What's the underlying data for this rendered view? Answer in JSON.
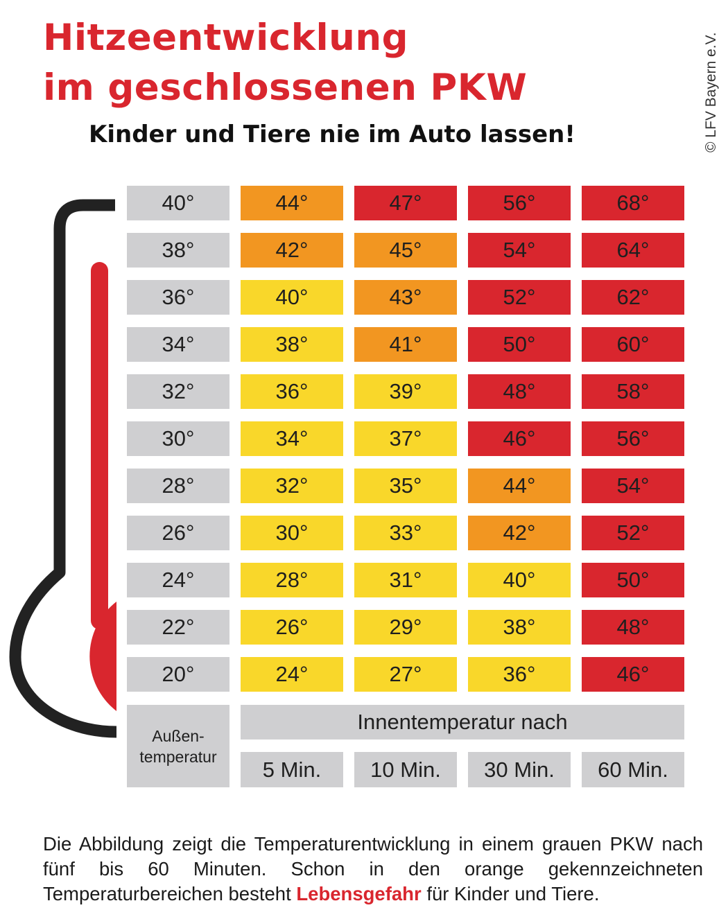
{
  "title": [
    "Hitzeentwicklung",
    "im geschlossenen PKW"
  ],
  "subtitle": "Kinder und Tiere nie im Auto lassen!",
  "copyright": "© LFV Bayern e.V.",
  "colors": {
    "title_red": "#d9262e",
    "gray": "#cfcfd1",
    "yellow": "#f9d72a",
    "orange": "#f29621",
    "red": "#d9262e",
    "thermometer_frame": "#222222"
  },
  "chart_data": {
    "type": "table",
    "row_header_label": [
      "Außen-",
      "temperatur"
    ],
    "column_group_label": "Innentemperatur nach",
    "columns": [
      "5 Min.",
      "10 Min.",
      "30 Min.",
      "60 Min."
    ],
    "rows": [
      {
        "outside": "40°",
        "values": [
          "44°",
          "47°",
          "56°",
          "68°"
        ],
        "levels": [
          "orange",
          "red",
          "red",
          "red"
        ]
      },
      {
        "outside": "38°",
        "values": [
          "42°",
          "45°",
          "54°",
          "64°"
        ],
        "levels": [
          "orange",
          "orange",
          "red",
          "red"
        ]
      },
      {
        "outside": "36°",
        "values": [
          "40°",
          "43°",
          "52°",
          "62°"
        ],
        "levels": [
          "yellow",
          "orange",
          "red",
          "red"
        ]
      },
      {
        "outside": "34°",
        "values": [
          "38°",
          "41°",
          "50°",
          "60°"
        ],
        "levels": [
          "yellow",
          "orange",
          "red",
          "red"
        ]
      },
      {
        "outside": "32°",
        "values": [
          "36°",
          "39°",
          "48°",
          "58°"
        ],
        "levels": [
          "yellow",
          "yellow",
          "red",
          "red"
        ]
      },
      {
        "outside": "30°",
        "values": [
          "34°",
          "37°",
          "46°",
          "56°"
        ],
        "levels": [
          "yellow",
          "yellow",
          "red",
          "red"
        ]
      },
      {
        "outside": "28°",
        "values": [
          "32°",
          "35°",
          "44°",
          "54°"
        ],
        "levels": [
          "yellow",
          "yellow",
          "orange",
          "red"
        ]
      },
      {
        "outside": "26°",
        "values": [
          "30°",
          "33°",
          "42°",
          "52°"
        ],
        "levels": [
          "yellow",
          "yellow",
          "orange",
          "red"
        ]
      },
      {
        "outside": "24°",
        "values": [
          "28°",
          "31°",
          "40°",
          "50°"
        ],
        "levels": [
          "yellow",
          "yellow",
          "yellow",
          "red"
        ]
      },
      {
        "outside": "22°",
        "values": [
          "26°",
          "29°",
          "38°",
          "48°"
        ],
        "levels": [
          "yellow",
          "yellow",
          "yellow",
          "red"
        ]
      },
      {
        "outside": "20°",
        "values": [
          "24°",
          "27°",
          "36°",
          "46°"
        ],
        "levels": [
          "yellow",
          "yellow",
          "yellow",
          "red"
        ]
      }
    ]
  },
  "caption": {
    "before": "Die Abbildung zeigt die Temperaturentwicklung in einem grauen PKW nach fünf bis 60 Minuten. Schon in den orange gekennzeichneten Temperaturbereichen besteht ",
    "highlight": "Lebensgefahr",
    "after": " für Kinder und Tiere."
  }
}
